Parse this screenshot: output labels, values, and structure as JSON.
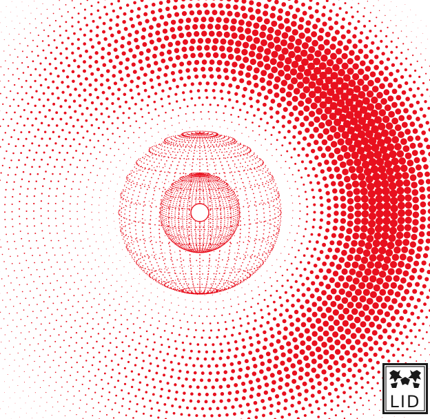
{
  "artwork": {
    "dot_color": "#e8101e",
    "background_color": "#ffffff"
  },
  "logo": {
    "text": "LID",
    "frame_color": "#1a1a1a",
    "text_color": "#1a1a1a"
  }
}
